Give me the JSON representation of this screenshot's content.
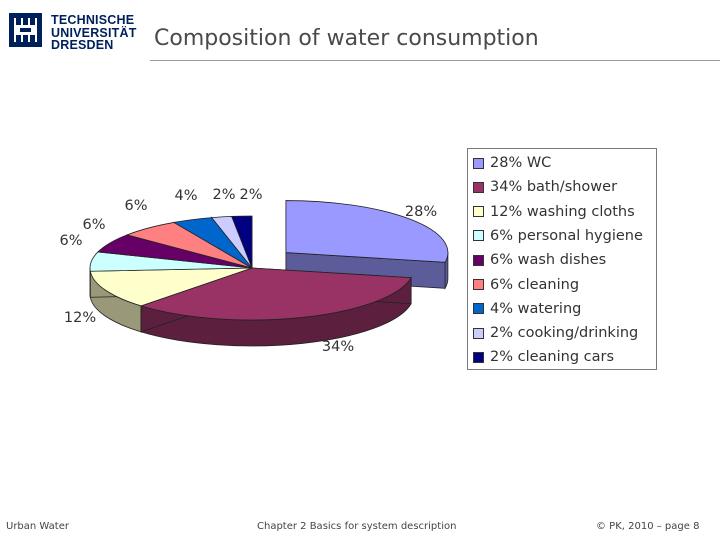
{
  "header": {
    "logo_lines": [
      "TECHNISCHE",
      "UNIVERSITÄT",
      "DRESDEN"
    ],
    "title": "Composition of water consumption"
  },
  "chart_data": {
    "type": "pie",
    "title": "",
    "slices": [
      {
        "name": "WC",
        "value": 28,
        "label": "28%",
        "legend": "28% WC",
        "color": "#9999ff",
        "dark": "#5c5c9a"
      },
      {
        "name": "bath/shower",
        "value": 34,
        "label": "34%",
        "legend": "34% bath/shower",
        "color": "#993366",
        "dark": "#5c1f3d"
      },
      {
        "name": "washing cloths",
        "value": 12,
        "label": "12%",
        "legend": "12% washing cloths",
        "color": "#ffffcc",
        "dark": "#99997a"
      },
      {
        "name": "personal hygiene",
        "value": 6,
        "label": "6%",
        "legend": "6% personal hygiene",
        "color": "#ccffff",
        "dark": "#7a9999"
      },
      {
        "name": "wash dishes",
        "value": 6,
        "label": "6%",
        "legend": "6% wash dishes",
        "color": "#660066",
        "dark": "#3d003d"
      },
      {
        "name": "cleaning",
        "value": 6,
        "label": "6%",
        "legend": "6% cleaning",
        "color": "#ff8080",
        "dark": "#994d4d"
      },
      {
        "name": "watering",
        "value": 4,
        "label": "4%",
        "legend": "4% watering",
        "color": "#0066cc",
        "dark": "#003d7a"
      },
      {
        "name": "cooking/drinking",
        "value": 2,
        "label": "2%",
        "legend": "2% cooking/drinking",
        "color": "#ccccff",
        "dark": "#7a7a99"
      },
      {
        "name": "cleaning cars",
        "value": 2,
        "label": "2%",
        "legend": "2% cleaning cars",
        "color": "#000080",
        "dark": "#00004d"
      }
    ],
    "legend_position": "right",
    "exploded_slice": "WC",
    "style": "3d-pie"
  },
  "footer": {
    "left": "Urban Water",
    "center": "Chapter 2 Basics for system description",
    "right": "© PK, 2010 – page 8"
  }
}
